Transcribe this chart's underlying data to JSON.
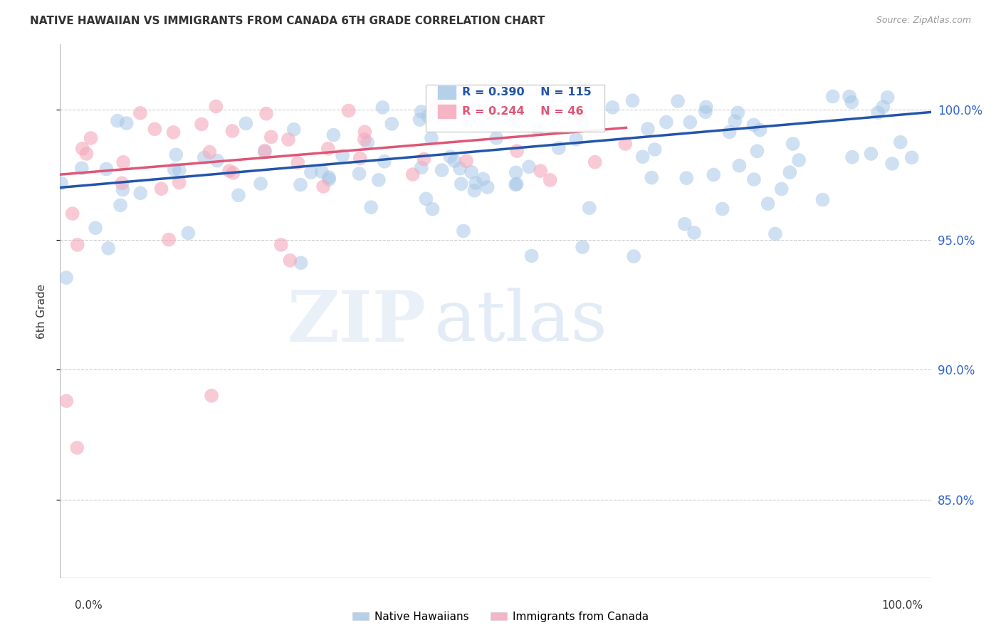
{
  "title": "NATIVE HAWAIIAN VS IMMIGRANTS FROM CANADA 6TH GRADE CORRELATION CHART",
  "source": "Source: ZipAtlas.com",
  "ylabel": "6th Grade",
  "ytick_values": [
    1.0,
    0.95,
    0.9,
    0.85
  ],
  "xlim": [
    0.0,
    1.0
  ],
  "ylim": [
    0.82,
    1.025
  ],
  "r_blue": 0.39,
  "n_blue": 115,
  "r_pink": 0.244,
  "n_pink": 46,
  "blue_color": "#A8C8E8",
  "pink_color": "#F4A8BB",
  "blue_line_color": "#2255AA",
  "pink_line_color": "#E05575",
  "legend_blue_label": "Native Hawaiians",
  "legend_pink_label": "Immigrants from Canada",
  "background_color": "#FFFFFF",
  "blue_line_x0": 0.0,
  "blue_line_y0": 0.97,
  "blue_line_x1": 1.0,
  "blue_line_y1": 0.999,
  "pink_line_x0": 0.0,
  "pink_line_y0": 0.975,
  "pink_line_x1": 0.65,
  "pink_line_y1": 0.993
}
